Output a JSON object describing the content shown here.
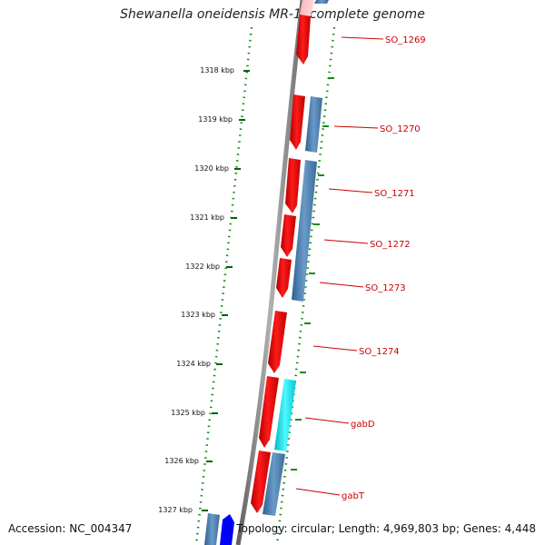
{
  "title": "Shewanella oneidensis MR-1, complete genome",
  "accession": "Accession: NC_004347",
  "topology": "Topology: circular; Length: 4,969,803 bp; Genes: 4,448",
  "scale_ticks": [
    {
      "label": "1318 kbp",
      "kbp": 1318
    },
    {
      "label": "1319 kbp",
      "kbp": 1319
    },
    {
      "label": "1320 kbp",
      "kbp": 1320
    },
    {
      "label": "1321 kbp",
      "kbp": 1321
    },
    {
      "label": "1322 kbp",
      "kbp": 1322
    },
    {
      "label": "1323 kbp",
      "kbp": 1323
    },
    {
      "label": "1324 kbp",
      "kbp": 1324
    },
    {
      "label": "1325 kbp",
      "kbp": 1325
    },
    {
      "label": "1326 kbp",
      "kbp": 1326
    },
    {
      "label": "1327 kbp",
      "kbp": 1327
    }
  ],
  "gene_labels": [
    {
      "label": "SO_1269"
    },
    {
      "label": "SO_1270"
    },
    {
      "label": "SO_1271"
    },
    {
      "label": "SO_1272"
    },
    {
      "label": "SO_1273"
    },
    {
      "label": "SO_1274"
    },
    {
      "label": "gabD"
    },
    {
      "label": "gabT"
    }
  ],
  "colors": {
    "cds": "#ff0000",
    "cds_faded": "#ffb0b0",
    "blast_hit": "#4a7fb0",
    "blast_hit_alt": "#00e5ee",
    "other_feature": "#0000ff",
    "backbone": "#808080",
    "scale_tick": "#006400",
    "label_text": "#cc0000"
  }
}
